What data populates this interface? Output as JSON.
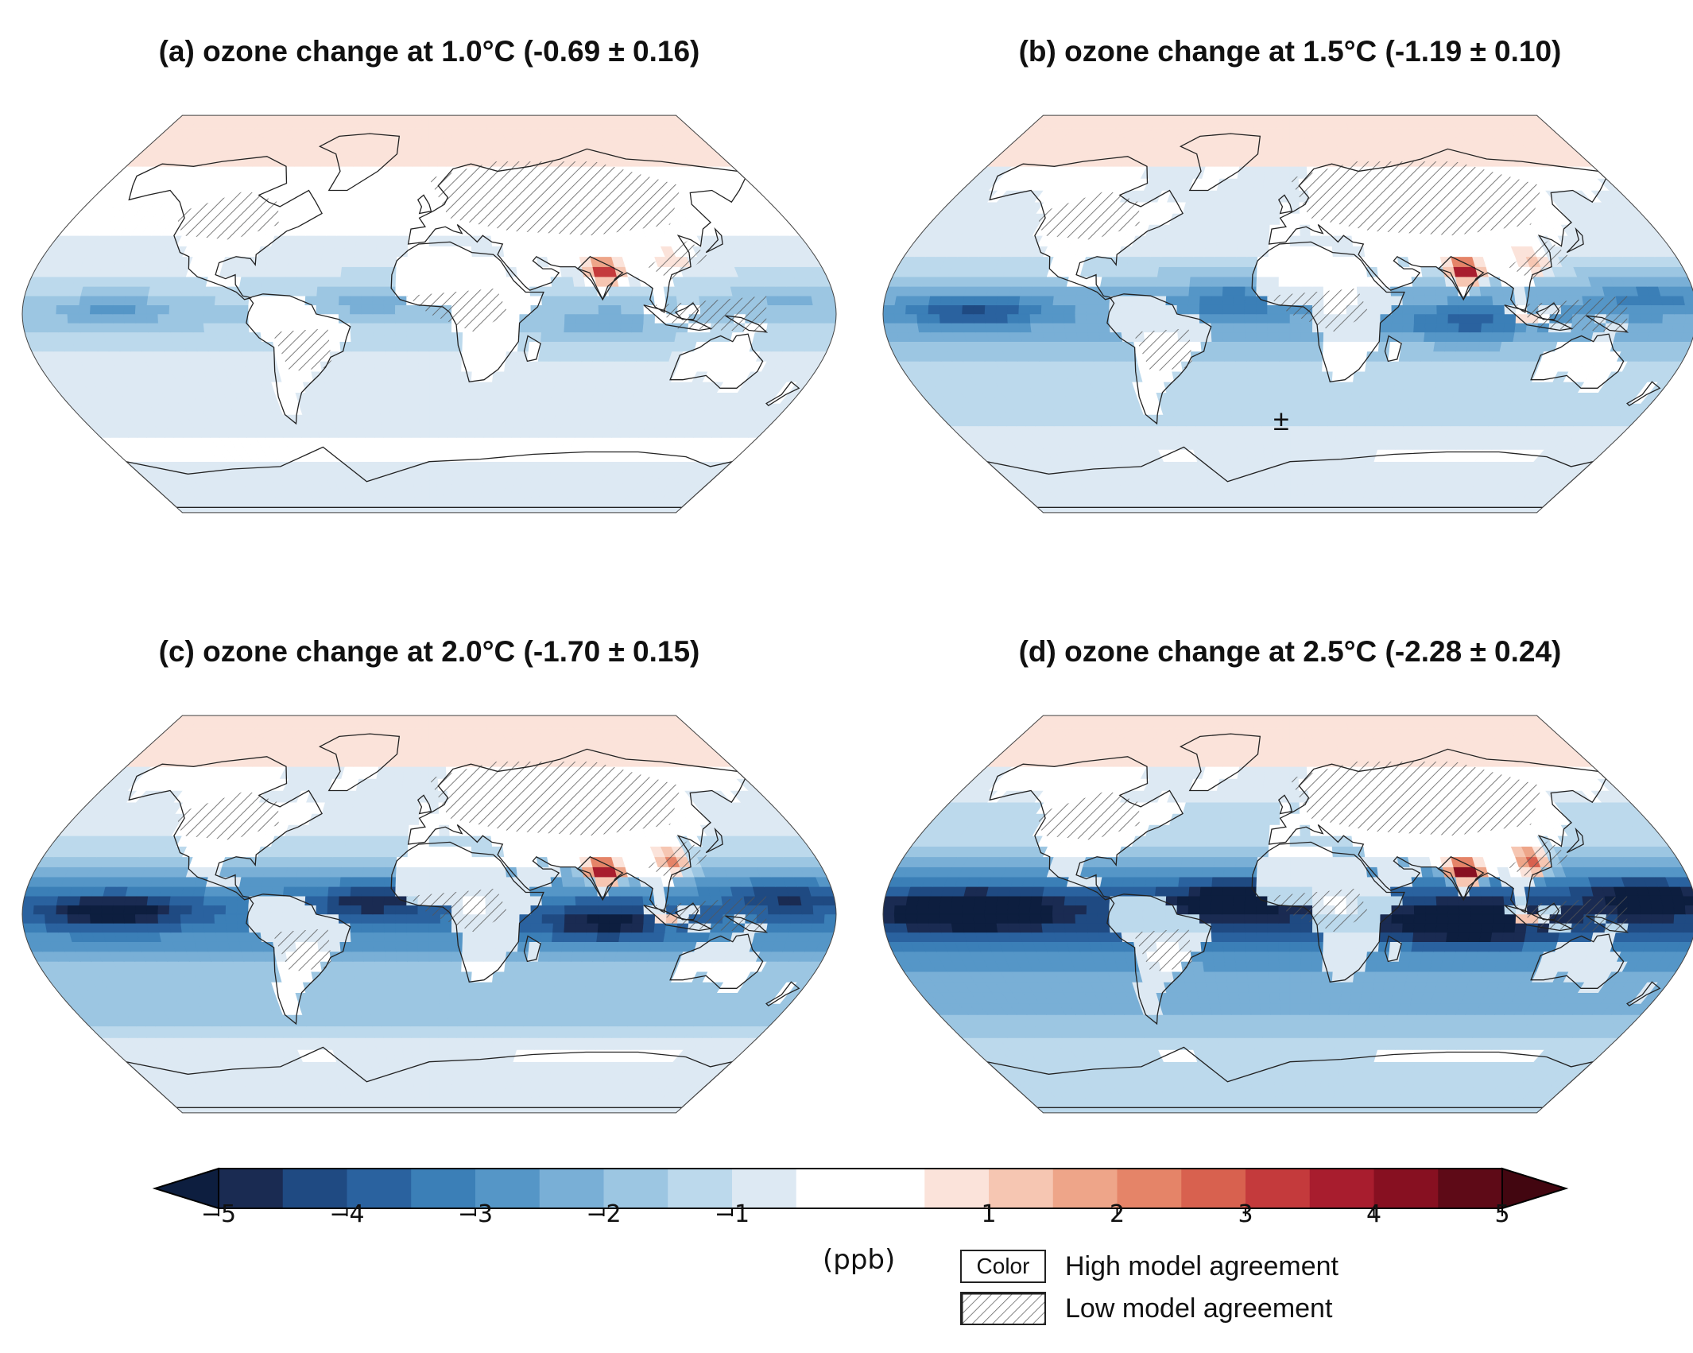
{
  "panels": [
    {
      "id": "a",
      "title": "(a) ozone change at 1.0°C (-0.69 ± 0.16)",
      "intensity": 0.35
    },
    {
      "id": "b",
      "title": "(b) ozone change at 1.5°C (-1.19 ± 0.10)",
      "intensity": 0.55
    },
    {
      "id": "c",
      "title": "(c) ozone change at 2.0°C (-1.70 ± 0.15)",
      "intensity": 0.78
    },
    {
      "id": "d",
      "title": "(d) ozone change at 2.5°C (-2.28 ± 0.24)",
      "intensity": 1.0
    }
  ],
  "colorbar": {
    "unit": "(ppb)",
    "range": [
      -5,
      5
    ],
    "tick_labels": [
      {
        "value": -5,
        "label": "−5"
      },
      {
        "value": -4,
        "label": "−4"
      },
      {
        "value": -3,
        "label": "−3"
      },
      {
        "value": -2,
        "label": "−2"
      },
      {
        "value": -1,
        "label": "−1"
      },
      {
        "value": 1,
        "label": "1"
      },
      {
        "value": 2,
        "label": "2"
      },
      {
        "value": 3,
        "label": "3"
      },
      {
        "value": 4,
        "label": "4"
      },
      {
        "value": 5,
        "label": "5"
      }
    ],
    "bin_edges": [
      -5,
      -4.5,
      -4,
      -3.5,
      -3,
      -2.5,
      -2,
      -1.5,
      -1,
      -0.5,
      0.5,
      1,
      1.5,
      2,
      2.5,
      3,
      3.5,
      4,
      4.5,
      5
    ],
    "colors": [
      "#1a2b52",
      "#1f4a82",
      "#2a629f",
      "#3b7fb7",
      "#5596c7",
      "#79afd6",
      "#9cc6e2",
      "#bcd9ec",
      "#dde9f3",
      "#ffffff",
      "#fbe3da",
      "#f6c6b2",
      "#eea589",
      "#e58468",
      "#d8614f",
      "#c43a3c",
      "#a81d2e",
      "#871021",
      "#5e0a17"
    ],
    "under_color": "#0d1e3f",
    "over_color": "#420610"
  },
  "legend": {
    "color_box_label": "Color",
    "high_agreement": "High model agreement",
    "low_agreement": "Low model agreement"
  },
  "annotation": "±"
}
